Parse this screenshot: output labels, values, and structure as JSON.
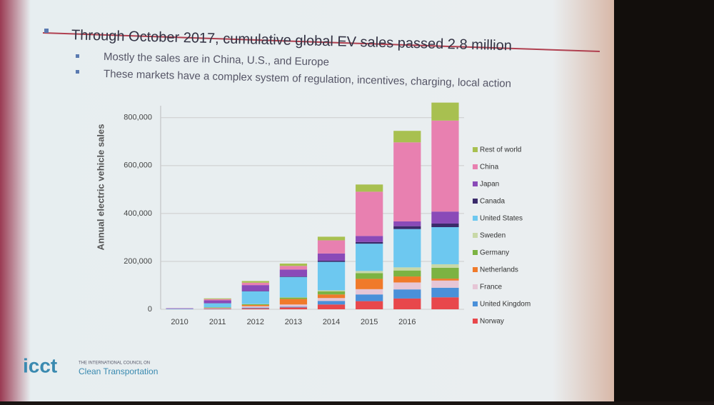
{
  "slide": {
    "bullets": [
      "Through October 2017, cumulative global EV sales passed 2.8 million",
      "Mostly the sales are in China, U.S., and Europe",
      "These markets have a complex system of regulation, incentives, charging, local action"
    ],
    "logo": "icct",
    "org_line1": "THE INTERNATIONAL COUNCIL ON",
    "org_line2": "Clean Transportation"
  },
  "chart_data": {
    "type": "stacked-bar",
    "y_label": "Annual electric vehicle sales",
    "categories": [
      "2010",
      "2011",
      "2012",
      "2013",
      "2014",
      "2015",
      "2016",
      null
    ],
    "series": [
      {
        "name": "Norway",
        "color": "#e8474b",
        "values": [
          0,
          2000,
          4000,
          8000,
          20000,
          34000,
          45000,
          50000
        ]
      },
      {
        "name": "United Kingdom",
        "color": "#4a90d9",
        "values": [
          0,
          1000,
          3000,
          3000,
          15000,
          28000,
          38000,
          40000
        ]
      },
      {
        "name": "France",
        "color": "#e6c6d6",
        "values": [
          0,
          2000,
          6000,
          9000,
          12000,
          22000,
          29000,
          30000
        ]
      },
      {
        "name": "Netherlands",
        "color": "#f07a2a",
        "values": [
          0,
          1000,
          5000,
          23000,
          15000,
          43000,
          25000,
          8000
        ]
      },
      {
        "name": "Germany",
        "color": "#7cb342",
        "values": [
          0,
          2000,
          3000,
          6000,
          13000,
          24000,
          25000,
          45000
        ]
      },
      {
        "name": "Sweden",
        "color": "#c8d8a8",
        "values": [
          0,
          0,
          1000,
          1000,
          4000,
          9000,
          13000,
          15000
        ]
      },
      {
        "name": "United States",
        "color": "#6dc8f0",
        "values": [
          2000,
          17000,
          53000,
          85000,
          119000,
          114000,
          160000,
          155000
        ]
      },
      {
        "name": "Canada",
        "color": "#3a2a6a",
        "values": [
          0,
          500,
          1000,
          2000,
          5000,
          7000,
          12000,
          15000
        ]
      },
      {
        "name": "Japan",
        "color": "#8a4ab8",
        "values": [
          2000,
          12000,
          25000,
          29000,
          30000,
          25000,
          20000,
          50000
        ]
      },
      {
        "name": "China",
        "color": "#e880b0",
        "values": [
          1000,
          5000,
          10000,
          15000,
          55000,
          185000,
          330000,
          380000
        ]
      },
      {
        "name": "Rest of world",
        "color": "#a8c050",
        "values": [
          0,
          3000,
          7000,
          10000,
          15000,
          30000,
          48000,
          75000
        ]
      }
    ],
    "ylim": [
      0,
      850000
    ],
    "yticks": [
      0,
      {
        "value": 200000,
        "label": "200,000"
      },
      {
        "value": 400000,
        "label": "400,000"
      },
      {
        "value": 600000,
        "label": "600,000"
      },
      {
        "value": 800000,
        "label": "800,000"
      }
    ],
    "grid": true
  }
}
